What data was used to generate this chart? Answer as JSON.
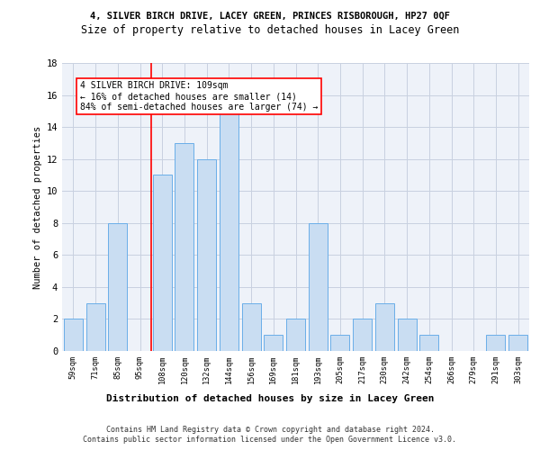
{
  "title1": "4, SILVER BIRCH DRIVE, LACEY GREEN, PRINCES RISBOROUGH, HP27 0QF",
  "title2": "Size of property relative to detached houses in Lacey Green",
  "xlabel": "Distribution of detached houses by size in Lacey Green",
  "ylabel": "Number of detached properties",
  "categories": [
    "59sqm",
    "71sqm",
    "85sqm",
    "95sqm",
    "108sqm",
    "120sqm",
    "132sqm",
    "144sqm",
    "156sqm",
    "169sqm",
    "181sqm",
    "193sqm",
    "205sqm",
    "217sqm",
    "230sqm",
    "242sqm",
    "254sqm",
    "266sqm",
    "279sqm",
    "291sqm",
    "303sqm"
  ],
  "values": [
    2,
    3,
    8,
    0,
    11,
    13,
    12,
    15,
    3,
    1,
    2,
    8,
    1,
    2,
    3,
    2,
    1,
    0,
    0,
    1,
    1
  ],
  "bar_color": "#c9ddf2",
  "bar_edge_color": "#6aaee8",
  "red_line_index": 4,
  "annotation_line1": "4 SILVER BIRCH DRIVE: 109sqm",
  "annotation_line2": "← 16% of detached houses are smaller (14)",
  "annotation_line3": "84% of semi-detached houses are larger (74) →",
  "ylim": [
    0,
    18
  ],
  "yticks": [
    0,
    2,
    4,
    6,
    8,
    10,
    12,
    14,
    16,
    18
  ],
  "footer1": "Contains HM Land Registry data © Crown copyright and database right 2024.",
  "footer2": "Contains public sector information licensed under the Open Government Licence v3.0.",
  "bg_color": "#eef2f9",
  "grid_color": "#c8d0e0",
  "title1_fontsize": 7.5,
  "title2_fontsize": 8.5,
  "ylabel_fontsize": 7.5,
  "xtick_fontsize": 6.2,
  "ytick_fontsize": 7.5,
  "annotation_fontsize": 7.0,
  "xlabel_fontsize": 8.0,
  "footer_fontsize": 6.0
}
